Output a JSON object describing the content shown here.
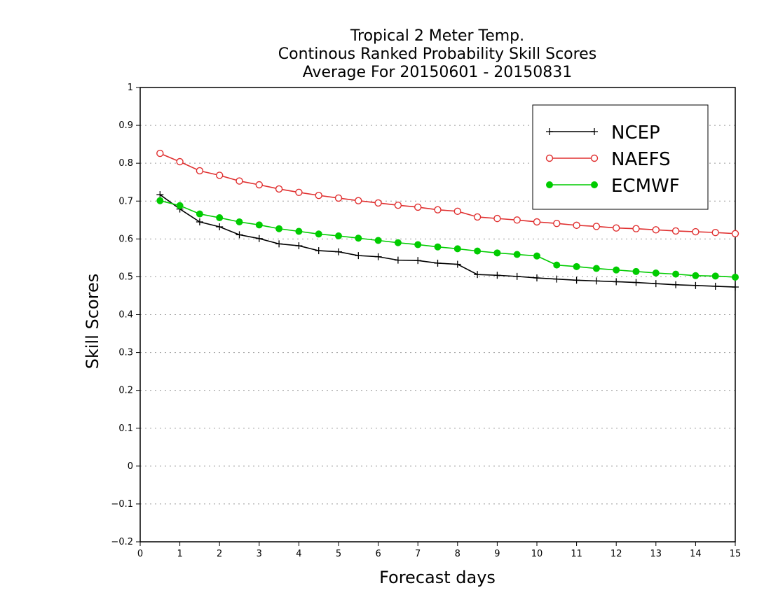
{
  "chart_data": {
    "type": "line",
    "title_lines": [
      "Tropical 2 Meter Temp.",
      "Continous Ranked Probability Skill Scores",
      "Average For 20150601 - 20150831"
    ],
    "xlabel": "Forecast days",
    "ylabel": "Skill Scores",
    "xlim": [
      0,
      15
    ],
    "ylim": [
      -0.2,
      1
    ],
    "x_ticks": [
      "0",
      "1",
      "2",
      "3",
      "4",
      "5",
      "6",
      "7",
      "8",
      "9",
      "10",
      "11",
      "12",
      "13",
      "14",
      "15"
    ],
    "y_ticks": [
      "1",
      "0.9",
      "0.8",
      "0.7",
      "0.6",
      "0.5",
      "0.4",
      "0.3",
      "0.2",
      "0.1",
      "0",
      "-0.1",
      "-0.2"
    ],
    "grid": "dotted horizontal",
    "legend_position": "top-right",
    "x": [
      0.5,
      1,
      1.5,
      2,
      2.5,
      3,
      3.5,
      4,
      4.5,
      5,
      5.5,
      6,
      6.5,
      7,
      7.5,
      8,
      8.5,
      9,
      9.5,
      10,
      10.5,
      11,
      11.5,
      12,
      12.5,
      13,
      13.5,
      14,
      14.5,
      15
    ],
    "series": [
      {
        "name": "NCEP",
        "color": "#000000",
        "marker": "plus",
        "values": [
          0.717,
          0.679,
          0.645,
          0.632,
          0.611,
          0.601,
          0.587,
          0.582,
          0.569,
          0.566,
          0.556,
          0.553,
          0.544,
          0.543,
          0.536,
          0.533,
          0.506,
          0.504,
          0.501,
          0.497,
          0.494,
          0.491,
          0.489,
          0.487,
          0.485,
          0.482,
          0.479,
          0.477,
          0.475,
          0.473
        ]
      },
      {
        "name": "NAEFS",
        "color": "#e03030",
        "marker": "open-circle",
        "values": [
          0.826,
          0.804,
          0.78,
          0.768,
          0.753,
          0.743,
          0.732,
          0.723,
          0.715,
          0.708,
          0.701,
          0.695,
          0.689,
          0.684,
          0.677,
          0.673,
          0.658,
          0.654,
          0.65,
          0.645,
          0.641,
          0.636,
          0.633,
          0.629,
          0.627,
          0.624,
          0.621,
          0.619,
          0.617,
          0.614
        ]
      },
      {
        "name": "ECMWF",
        "color": "#00cc00",
        "marker": "filled-circle",
        "values": [
          0.701,
          0.688,
          0.666,
          0.656,
          0.645,
          0.637,
          0.627,
          0.62,
          0.613,
          0.608,
          0.602,
          0.596,
          0.59,
          0.585,
          0.579,
          0.574,
          0.568,
          0.563,
          0.559,
          0.555,
          0.531,
          0.527,
          0.522,
          0.518,
          0.514,
          0.51,
          0.507,
          0.503,
          0.502,
          0.499
        ]
      }
    ]
  }
}
